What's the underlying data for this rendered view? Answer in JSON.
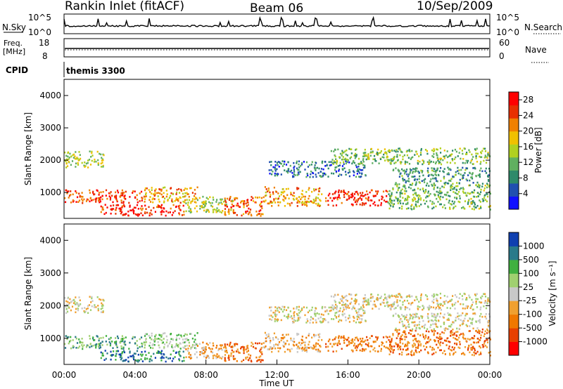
{
  "header": {
    "station": "Rankin Inlet (fitACF)",
    "beam": "Beam 06",
    "date": "10/Sep/2009"
  },
  "params": {
    "nsky_label": "N.Sky",
    "nsearch_label": "N.Search",
    "freq_label": "Freq.",
    "freq_unit": "[MHz]",
    "nave_label": "Nave",
    "cpid_label": "CPID",
    "cpid_text": "themis 3300",
    "nsky_ticks": [
      "10^5",
      "10^0"
    ],
    "nsearch_ticks": [
      "10^5",
      "10^0"
    ],
    "freq_ticks": [
      "18",
      "8"
    ],
    "nave_ticks": [
      "60",
      "0"
    ]
  },
  "colors": {
    "power_scale": [
      "#1010ff",
      "#2050b0",
      "#2e8a6a",
      "#60b060",
      "#b0d020",
      "#f0c000",
      "#f08000",
      "#e83000",
      "#ff0000"
    ],
    "velocity_scale": [
      "#ff0000",
      "#e84000",
      "#f07800",
      "#f0a030",
      "#c8c8c8",
      "#a0d070",
      "#40b040",
      "#2a7a8a",
      "#1040b0"
    ],
    "ground_scatter": "#c0c0c0"
  },
  "chart_data": [
    {
      "type": "heatmap",
      "panel": "power",
      "ylabel": "Slant Range [km]",
      "xlabel": "",
      "ylim": [
        200,
        4500
      ],
      "xlim": [
        "00:00",
        "24:00"
      ],
      "yticks": [
        1000,
        2000,
        3000,
        4000
      ],
      "colorbar_label": "Power [dB]",
      "colorbar_ticks": [
        "4",
        "8",
        "12",
        "16",
        "20",
        "24",
        "28"
      ],
      "colorbar_range": [
        0,
        30
      ],
      "bands": [
        {
          "t0": 0.0,
          "t1": 4.5,
          "r0": 700,
          "r1": 1100,
          "level": 25
        },
        {
          "t0": 2.0,
          "t1": 6.8,
          "r0": 300,
          "r1": 650,
          "level": 27
        },
        {
          "t0": 4.5,
          "t1": 7.5,
          "r0": 700,
          "r1": 1200,
          "level": 20
        },
        {
          "t0": 6.8,
          "t1": 9.5,
          "r0": 400,
          "r1": 900,
          "level": 15
        },
        {
          "t0": 9.0,
          "t1": 11.2,
          "r0": 300,
          "r1": 900,
          "level": 24
        },
        {
          "t0": 11.2,
          "t1": 14.5,
          "r0": 600,
          "r1": 1200,
          "level": 20
        },
        {
          "t0": 14.7,
          "t1": 18.2,
          "r0": 600,
          "r1": 1100,
          "level": 26
        },
        {
          "t0": 18.2,
          "t1": 24.0,
          "r0": 500,
          "r1": 1300,
          "level": 12
        },
        {
          "t0": 0.0,
          "t1": 2.2,
          "r0": 1800,
          "r1": 2300,
          "level": 15
        },
        {
          "t0": 11.5,
          "t1": 17.0,
          "r0": 1500,
          "r1": 2000,
          "level": 7
        },
        {
          "t0": 15.0,
          "t1": 24.0,
          "r0": 1900,
          "r1": 2400,
          "level": 13
        },
        {
          "t0": 18.5,
          "t1": 24.0,
          "r0": 1300,
          "r1": 1800,
          "level": 9
        }
      ]
    },
    {
      "type": "heatmap",
      "panel": "velocity",
      "ylabel": "Slant Range [km]",
      "xlabel": "Time UT",
      "ylim": [
        200,
        4500
      ],
      "xlim": [
        "00:00",
        "24:00"
      ],
      "yticks": [
        1000,
        2000,
        3000,
        4000
      ],
      "xticks": [
        "00:00",
        "04:00",
        "08:00",
        "12:00",
        "16:00",
        "20:00",
        "00:00"
      ],
      "colorbar_label": "Velocity [m s⁻¹]",
      "colorbar_ticks": [
        "1000",
        "500",
        "100",
        "25",
        "-25",
        "-100",
        "-500",
        "-1000"
      ],
      "bands": [
        {
          "t0": 0.0,
          "t1": 4.5,
          "r0": 700,
          "r1": 1100,
          "level": 6
        },
        {
          "t0": 2.0,
          "t1": 6.8,
          "r0": 300,
          "r1": 650,
          "level": 7
        },
        {
          "t0": 4.5,
          "t1": 7.5,
          "r0": 700,
          "r1": 1200,
          "level": 5
        },
        {
          "t0": 6.8,
          "t1": 9.5,
          "r0": 400,
          "r1": 900,
          "level": 3
        },
        {
          "t0": 9.0,
          "t1": 11.2,
          "r0": 300,
          "r1": 900,
          "level": 2
        },
        {
          "t0": 11.2,
          "t1": 14.5,
          "r0": 600,
          "r1": 1200,
          "level": 3
        },
        {
          "t0": 14.7,
          "t1": 18.2,
          "r0": 600,
          "r1": 1100,
          "level": 2
        },
        {
          "t0": 18.2,
          "t1": 24.0,
          "r0": 500,
          "r1": 1300,
          "level": 2
        },
        {
          "t0": 0.0,
          "t1": 2.2,
          "r0": 1800,
          "r1": 2300,
          "level": 4
        },
        {
          "t0": 11.5,
          "t1": 17.0,
          "r0": 1500,
          "r1": 2000,
          "level": 4
        },
        {
          "t0": 15.0,
          "t1": 24.0,
          "r0": 1900,
          "r1": 2400,
          "level": 4
        },
        {
          "t0": 18.5,
          "t1": 24.0,
          "r0": 1300,
          "r1": 1800,
          "level": 4
        }
      ]
    }
  ]
}
